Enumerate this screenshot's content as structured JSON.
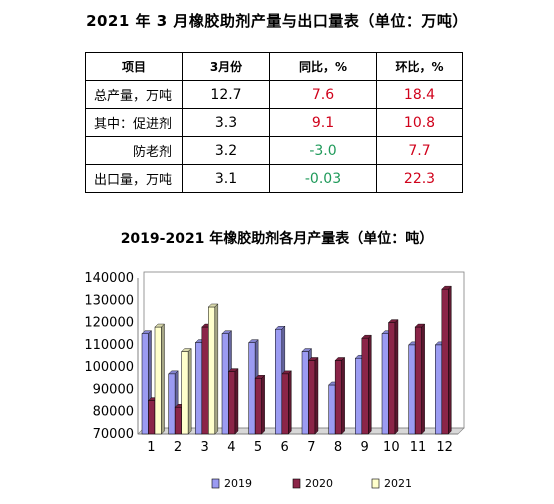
{
  "table_title": "2021 年 3 月橡胶助剂产量与出口量表（单位：万吨）",
  "table": {
    "headers": [
      "项目",
      "3月份",
      "同比，%",
      "环比，%"
    ],
    "rows": [
      {
        "label": "总产量，万吨",
        "value": "12.7",
        "yoy": "7.6",
        "mom": "18.4"
      },
      {
        "label": "其中：促进剂",
        "value": "3.3",
        "yoy": "9.1",
        "mom": "10.8"
      },
      {
        "label": "防老剂",
        "value": "3.2",
        "yoy": "-3.0",
        "mom": "7.7"
      },
      {
        "label": "出口量，万吨",
        "value": "3.1",
        "yoy": "-0.03",
        "mom": "22.3"
      }
    ]
  },
  "chart_data": {
    "type": "bar",
    "title": "2019-2021 年橡胶助剂各月产量表（单位：吨）",
    "categories": [
      "1",
      "2",
      "3",
      "4",
      "5",
      "6",
      "7",
      "8",
      "9",
      "10",
      "11",
      "12"
    ],
    "ylim": [
      70000,
      140000
    ],
    "yticks": [
      "70000",
      "80000",
      "90000",
      "100000",
      "110000",
      "120000",
      "130000",
      "140000"
    ],
    "legend_position": "bottom",
    "series": [
      {
        "name": "2019",
        "color": "#9b9bf2",
        "values": [
          115000,
          97000,
          111000,
          115000,
          111000,
          117000,
          107000,
          92000,
          104000,
          115000,
          110000,
          110000
        ]
      },
      {
        "name": "2020",
        "color": "#8b2548",
        "values": [
          85000,
          82000,
          118000,
          98000,
          95000,
          97000,
          103000,
          103000,
          113000,
          120000,
          118000,
          135000
        ]
      },
      {
        "name": "2021",
        "color": "#ffffcc",
        "values": [
          118000,
          107000,
          127000,
          null,
          null,
          null,
          null,
          null,
          null,
          null,
          null,
          null
        ]
      }
    ]
  }
}
